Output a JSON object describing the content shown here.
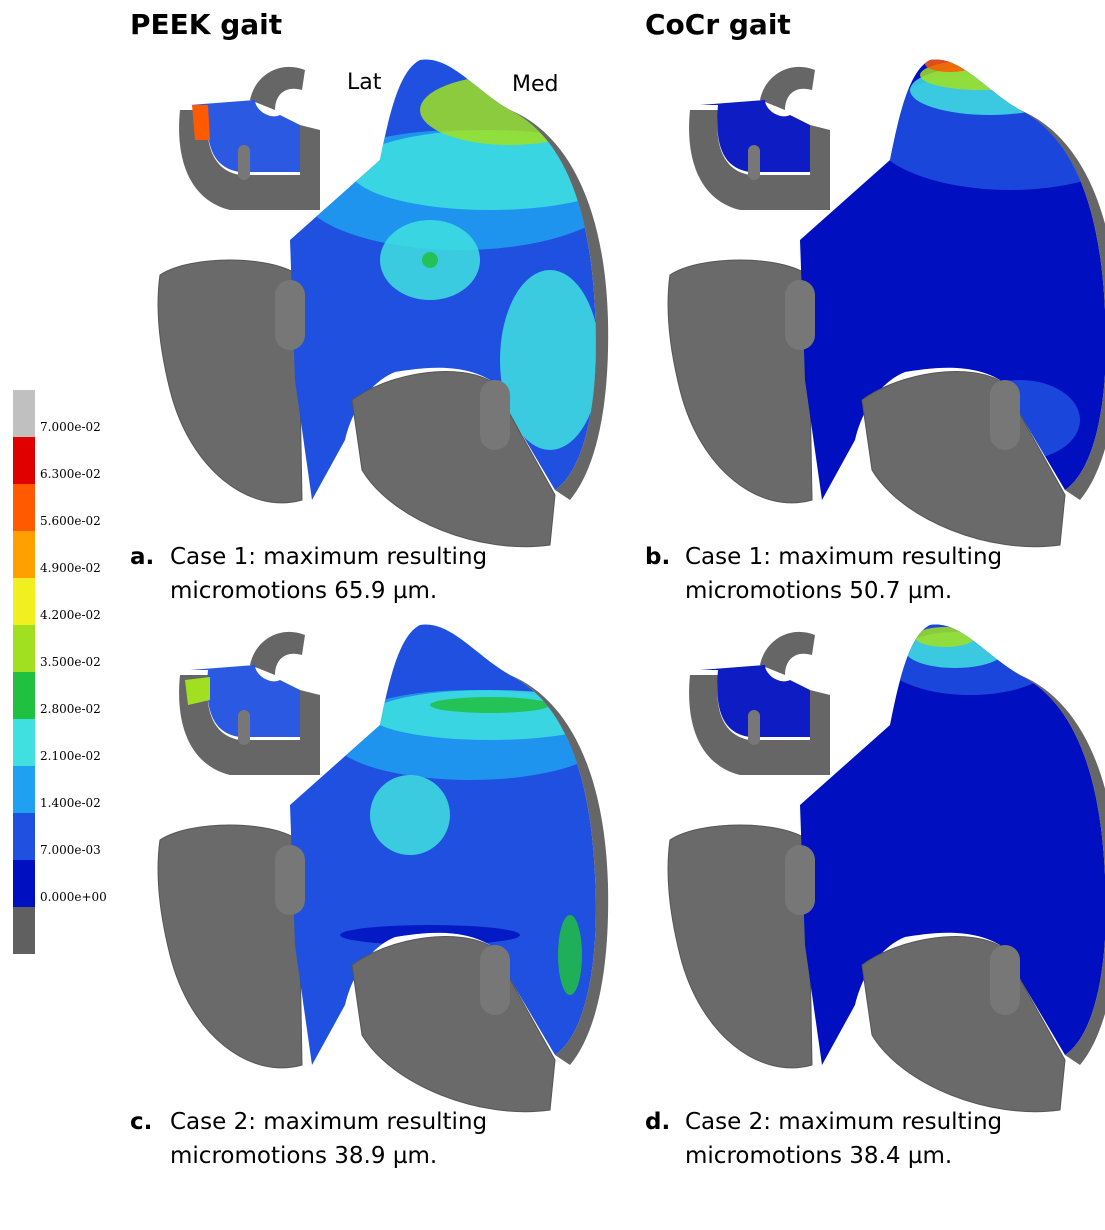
{
  "titles": [
    "PEEK gait",
    "CoCr gait"
  ],
  "side_labels": [
    "Lat",
    "Med"
  ],
  "legend": {
    "colors": [
      "#c0c0c0",
      "#e00000",
      "#ff5a00",
      "#ffa000",
      "#f0f020",
      "#a0e020",
      "#20c040",
      "#40e0e0",
      "#20a0f0",
      "#2050e0",
      "#0010c0",
      "#606060"
    ],
    "labels": [
      "7.000e-02",
      "6.300e-02",
      "5.600e-02",
      "4.900e-02",
      "4.200e-02",
      "3.500e-02",
      "2.800e-02",
      "2.100e-02",
      "1.400e-02",
      "7.000e-03",
      "0.000e+00"
    ]
  },
  "panels": [
    {
      "letter": "a.",
      "caption": "Case 1: maximum resulting micromotions 65.9 µm."
    },
    {
      "letter": "b.",
      "caption": "Case 1: maximum resulting micromotions 50.7 µm."
    },
    {
      "letter": "c.",
      "caption": "Case 2: maximum resulting micromotions 38.9 µm."
    },
    {
      "letter": "d.",
      "caption": "Case 2: maximum resulting micromotions 38.4 µm."
    }
  ]
}
